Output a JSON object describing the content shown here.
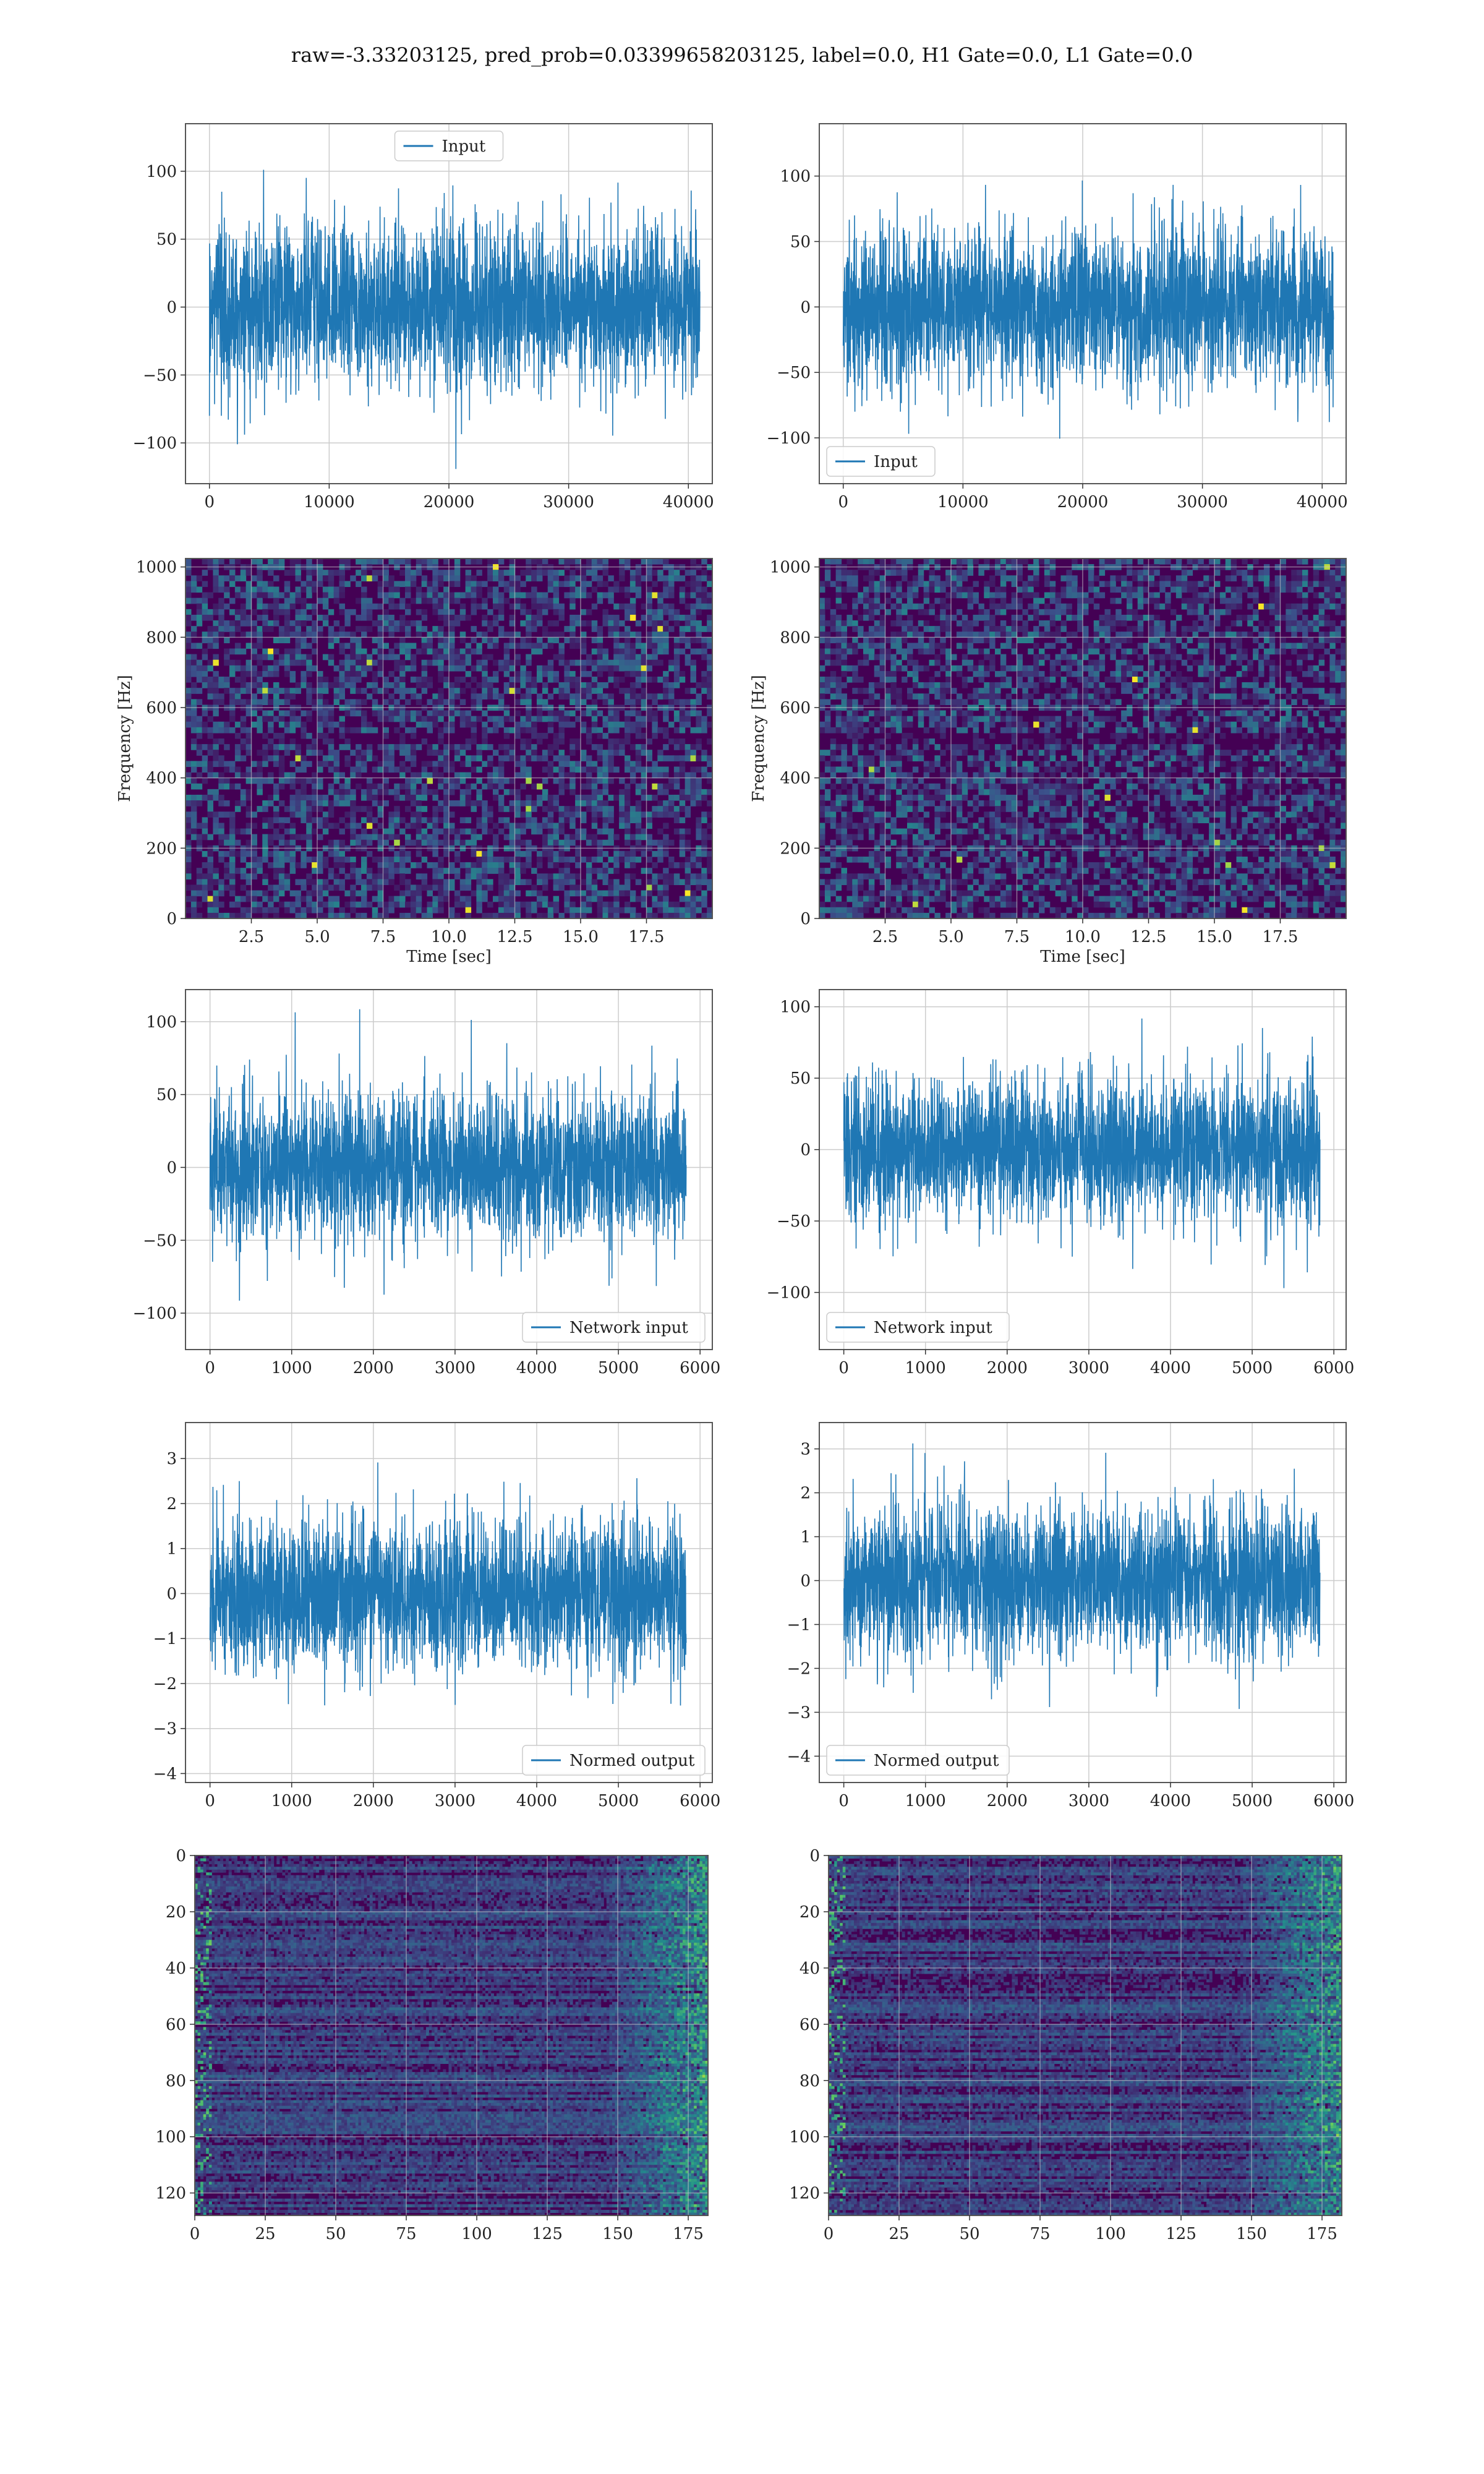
{
  "figure": {
    "title": "raw=-3.33203125, pred_prob=0.03399658203125, label=0.0, H1 Gate=0.0, L1 Gate=0.0"
  },
  "colors": {
    "line": "#1f77b4",
    "grid": "#cccccc",
    "axes": "#555555",
    "viridis_low": "#440154",
    "viridis_mid": "#21918c",
    "viridis_high": "#fde725"
  },
  "chart_data": [
    {
      "id": "input-h1",
      "type": "line",
      "signal": "noise",
      "xlim": [
        -2000,
        42000
      ],
      "ylim": [
        -130,
        135
      ],
      "xticks": [
        0,
        10000,
        20000,
        30000,
        40000
      ],
      "yticks": [
        -100,
        -50,
        0,
        50,
        100
      ],
      "x_range": [
        0,
        40960
      ],
      "amplitude": 30,
      "legend": "Input",
      "legend_loc": "upper center",
      "xlabel": "",
      "ylabel": ""
    },
    {
      "id": "input-l1",
      "type": "line",
      "signal": "noise",
      "xlim": [
        -2000,
        42000
      ],
      "ylim": [
        -135,
        140
      ],
      "xticks": [
        0,
        10000,
        20000,
        30000,
        40000
      ],
      "yticks": [
        -100,
        -50,
        0,
        50,
        100
      ],
      "x_range": [
        0,
        40960
      ],
      "amplitude": 30,
      "legend": "Input",
      "legend_loc": "lower left",
      "xlabel": "",
      "ylabel": ""
    },
    {
      "id": "spectrogram-h1",
      "type": "heatmap",
      "signal": "spectrogram",
      "xlim": [
        0,
        20
      ],
      "ylim": [
        0,
        1024
      ],
      "xticks": [
        2.5,
        5.0,
        7.5,
        10.0,
        12.5,
        15.0,
        17.5
      ],
      "yticks": [
        0,
        200,
        400,
        600,
        800,
        1000
      ],
      "xlabel": "Time [sec]",
      "ylabel": "Frequency [Hz]"
    },
    {
      "id": "spectrogram-l1",
      "type": "heatmap",
      "signal": "spectrogram",
      "xlim": [
        0,
        20
      ],
      "ylim": [
        0,
        1024
      ],
      "xticks": [
        2.5,
        5.0,
        7.5,
        10.0,
        12.5,
        15.0,
        17.5
      ],
      "yticks": [
        0,
        200,
        400,
        600,
        800,
        1000
      ],
      "xlabel": "Time [sec]",
      "ylabel": "Frequency [Hz]"
    },
    {
      "id": "network-input-h1",
      "type": "line",
      "signal": "noise",
      "xlim": [
        -300,
        6150
      ],
      "ylim": [
        -125,
        122
      ],
      "xticks": [
        0,
        1000,
        2000,
        3000,
        4000,
        5000,
        6000
      ],
      "yticks": [
        -100,
        -50,
        0,
        50,
        100
      ],
      "x_range": [
        0,
        5830
      ],
      "amplitude": 25,
      "legend": "Network input",
      "legend_loc": "lower right",
      "xlabel": "",
      "ylabel": ""
    },
    {
      "id": "network-input-l1",
      "type": "line",
      "signal": "noise",
      "xlim": [
        -300,
        6150
      ],
      "ylim": [
        -140,
        112
      ],
      "xticks": [
        0,
        1000,
        2000,
        3000,
        4000,
        5000,
        6000
      ],
      "yticks": [
        -100,
        -50,
        0,
        50,
        100
      ],
      "x_range": [
        0,
        5830
      ],
      "amplitude": 25,
      "legend": "Network input",
      "legend_loc": "lower left",
      "xlabel": "",
      "ylabel": ""
    },
    {
      "id": "normed-output-h1",
      "type": "line",
      "signal": "noise",
      "xlim": [
        -300,
        6150
      ],
      "ylim": [
        -4.2,
        3.8
      ],
      "xticks": [
        0,
        1000,
        2000,
        3000,
        4000,
        5000,
        6000
      ],
      "yticks": [
        -4,
        -3,
        -2,
        -1,
        0,
        1,
        2,
        3
      ],
      "x_range": [
        0,
        5830
      ],
      "amplitude": 0.85,
      "legend": "Normed output",
      "legend_loc": "lower right",
      "xlabel": "",
      "ylabel": ""
    },
    {
      "id": "normed-output-l1",
      "type": "line",
      "signal": "noise",
      "xlim": [
        -300,
        6150
      ],
      "ylim": [
        -4.6,
        3.6
      ],
      "xticks": [
        0,
        1000,
        2000,
        3000,
        4000,
        5000,
        6000
      ],
      "yticks": [
        -4,
        -3,
        -2,
        -1,
        0,
        1,
        2,
        3
      ],
      "x_range": [
        0,
        5830
      ],
      "amplitude": 0.85,
      "legend": "Normed output",
      "legend_loc": "lower left",
      "xlabel": "",
      "ylabel": ""
    },
    {
      "id": "feature-map-h1",
      "type": "heatmap",
      "signal": "featuremap",
      "xlim": [
        0,
        182
      ],
      "ylim": [
        128,
        0
      ],
      "xticks": [
        0,
        25,
        50,
        75,
        100,
        125,
        150,
        175
      ],
      "yticks": [
        0,
        20,
        40,
        60,
        80,
        100,
        120
      ],
      "xlabel": "",
      "ylabel": ""
    },
    {
      "id": "feature-map-l1",
      "type": "heatmap",
      "signal": "featuremap",
      "xlim": [
        0,
        182
      ],
      "ylim": [
        128,
        0
      ],
      "xticks": [
        0,
        25,
        50,
        75,
        100,
        125,
        150,
        175
      ],
      "yticks": [
        0,
        20,
        40,
        60,
        80,
        100,
        120
      ],
      "xlabel": "",
      "ylabel": ""
    }
  ]
}
